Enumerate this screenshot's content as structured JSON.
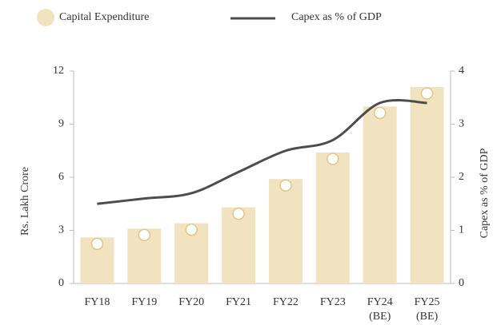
{
  "chart_data": {
    "type": "bar-line",
    "categories": [
      "FY18",
      "FY19",
      "FY20",
      "FY21",
      "FY22",
      "FY23",
      "FY24\n(BE)",
      "FY25\n(BE)"
    ],
    "series": [
      {
        "name": "Capital Expenditure",
        "color": "#f1e2c0",
        "values": [
          2.6,
          3.1,
          3.4,
          4.3,
          5.9,
          7.4,
          10.0,
          11.1
        ]
      },
      {
        "name": "Capex as % of GDP",
        "color": "#4d4d4d",
        "axis": "y2",
        "values": [
          1.5,
          1.6,
          1.7,
          2.1,
          2.5,
          2.7,
          3.4,
          3.4
        ]
      }
    ],
    "ylabel": "Rs. Lakh Crore",
    "y2label": "Capex as % of GDP",
    "ylim": [
      0,
      12
    ],
    "yticks": [
      0,
      3,
      6,
      9,
      12
    ],
    "y2lim": [
      0,
      4
    ],
    "y2ticks": [
      0,
      1,
      2,
      3,
      4
    ],
    "legend": "top"
  }
}
